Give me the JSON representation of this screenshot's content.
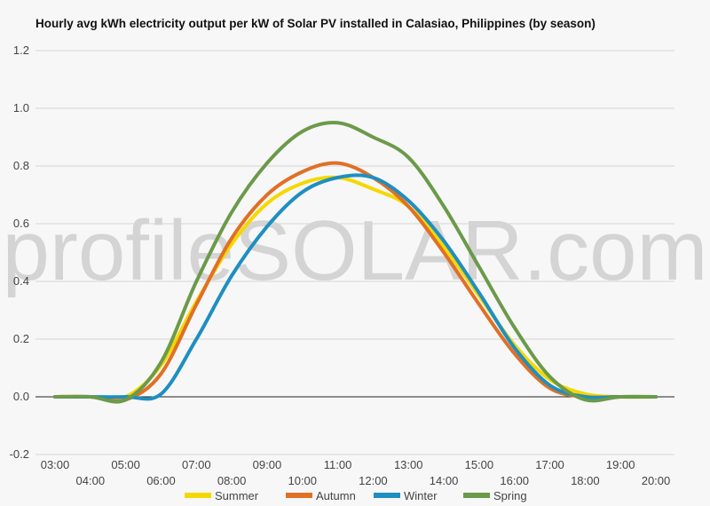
{
  "chart_data": {
    "type": "line",
    "title": "Hourly avg kWh electricity output per kW of Solar PV installed in Calasiao, Philippines (by season)",
    "watermark": "profileSOLAR.com",
    "xlabel": "",
    "ylabel": "",
    "ylim": [
      -0.2,
      1.2
    ],
    "yticks": [
      "1.2",
      "1.0",
      "0.8",
      "0.6",
      "0.4",
      "0.2",
      "0.0",
      "-0.2"
    ],
    "ytick_values": [
      1.2,
      1.0,
      0.8,
      0.6,
      0.4,
      0.2,
      0.0,
      -0.2
    ],
    "x": [
      "03:00",
      "04:00",
      "05:00",
      "06:00",
      "07:00",
      "08:00",
      "09:00",
      "10:00",
      "11:00",
      "12:00",
      "13:00",
      "14:00",
      "15:00",
      "16:00",
      "17:00",
      "18:00",
      "19:00",
      "20:00"
    ],
    "grid": true,
    "legend_position": "bottom",
    "series": [
      {
        "name": "Summer",
        "color": "#f5d800",
        "values": [
          0.0,
          0.0,
          0.0,
          0.11,
          0.33,
          0.53,
          0.67,
          0.74,
          0.76,
          0.72,
          0.66,
          0.52,
          0.35,
          0.18,
          0.06,
          0.01,
          0.0,
          0.0
        ]
      },
      {
        "name": "Autumn",
        "color": "#e07026",
        "values": [
          0.0,
          0.0,
          -0.01,
          0.08,
          0.32,
          0.55,
          0.7,
          0.78,
          0.81,
          0.76,
          0.66,
          0.5,
          0.32,
          0.15,
          0.03,
          0.0,
          0.0,
          0.0
        ]
      },
      {
        "name": "Winter",
        "color": "#1e8fc0",
        "values": [
          0.0,
          0.0,
          0.0,
          0.01,
          0.2,
          0.42,
          0.59,
          0.71,
          0.76,
          0.76,
          0.68,
          0.54,
          0.36,
          0.17,
          0.04,
          0.0,
          0.0,
          0.0
        ]
      },
      {
        "name": "Spring",
        "color": "#6b9a4a",
        "values": [
          0.0,
          0.0,
          -0.01,
          0.12,
          0.4,
          0.64,
          0.81,
          0.92,
          0.95,
          0.9,
          0.83,
          0.66,
          0.45,
          0.24,
          0.07,
          -0.01,
          0.0,
          0.0
        ]
      }
    ]
  }
}
